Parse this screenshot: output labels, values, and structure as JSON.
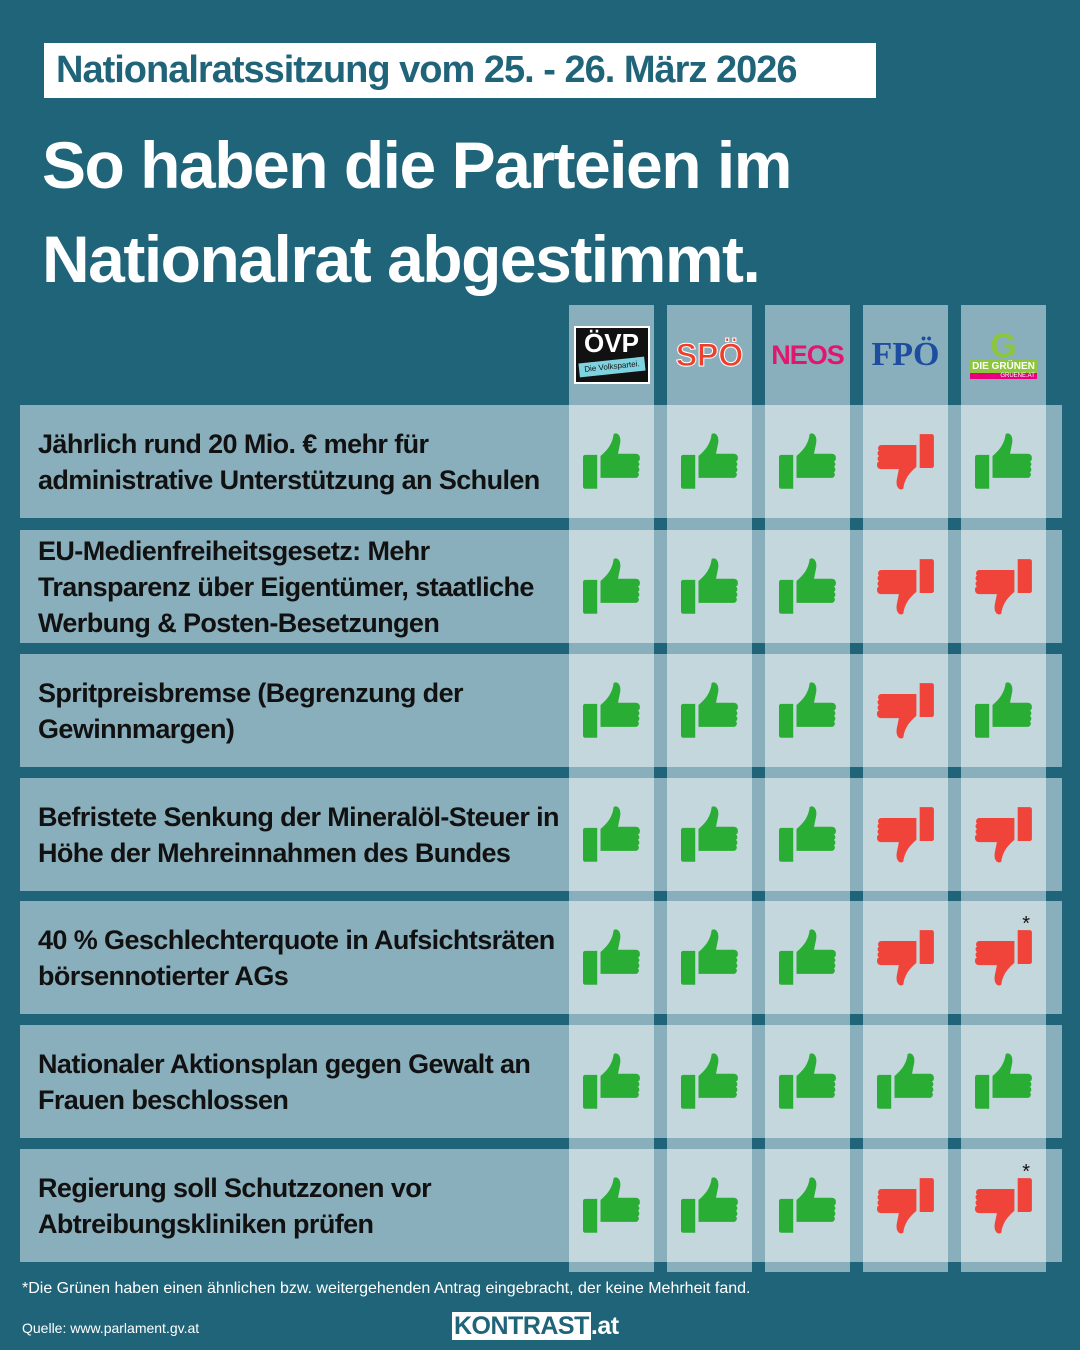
{
  "header": {
    "tag": "Nationalratssitzung vom 25. -  26. März 2026",
    "headline_line1": "So haben die Parteien im",
    "headline_line2": "Nationalrat abgestimmt."
  },
  "parties": [
    {
      "name": "ÖVP",
      "sub": "Die Volkspartei."
    },
    {
      "name": "SPÖ"
    },
    {
      "name": "NEOS"
    },
    {
      "name": "FPÖ"
    },
    {
      "name": "DIE GRÜNEN",
      "sub": "GRUENE.AT"
    }
  ],
  "colors": {
    "background": "#1f6479",
    "yes": "#2aad34",
    "no": "#f0443a",
    "cell": "#c4d7dd",
    "row": "#8aafbc"
  },
  "motions": [
    {
      "text": "Jährlich rund 20 Mio. € mehr für administrative Unterstützung an Schulen",
      "votes": [
        "yes",
        "yes",
        "yes",
        "no",
        "yes"
      ],
      "star": false
    },
    {
      "text": "EU-Medienfreiheitsgesetz: Mehr Transparenz über Eigentümer, staatliche Werbung & Posten-Besetzungen",
      "votes": [
        "yes",
        "yes",
        "yes",
        "no",
        "no"
      ],
      "star": false
    },
    {
      "text": "Spritpreisbremse (Begrenzung der Gewinnmargen)",
      "votes": [
        "yes",
        "yes",
        "yes",
        "no",
        "yes"
      ],
      "star": false
    },
    {
      "text": "Befristete Senkung der Mineralöl-Steuer in Höhe der Mehreinnahmen des Bundes",
      "votes": [
        "yes",
        "yes",
        "yes",
        "no",
        "no"
      ],
      "star": false
    },
    {
      "text": "40 % Geschlechterquote in Aufsichtsräten börsennotierter AGs",
      "votes": [
        "yes",
        "yes",
        "yes",
        "no",
        "no"
      ],
      "star": true
    },
    {
      "text": "Nationaler Aktionsplan gegen Gewalt an Frauen beschlossen",
      "votes": [
        "yes",
        "yes",
        "yes",
        "yes",
        "yes"
      ],
      "star": false
    },
    {
      "text": "Regierung soll Schutzzonen vor Abtreibungskliniken prüfen",
      "votes": [
        "yes",
        "yes",
        "yes",
        "no",
        "no"
      ],
      "star": true
    }
  ],
  "star_symbol": "*",
  "footnote": "*Die Grünen haben einen ähnlichen bzw. weitergehenden Antrag eingebracht, der keine Mehrheit fand.",
  "source": "Quelle: www.parlament.gv.at",
  "brand": {
    "main": "KONTRAST",
    "suffix": ".at"
  }
}
